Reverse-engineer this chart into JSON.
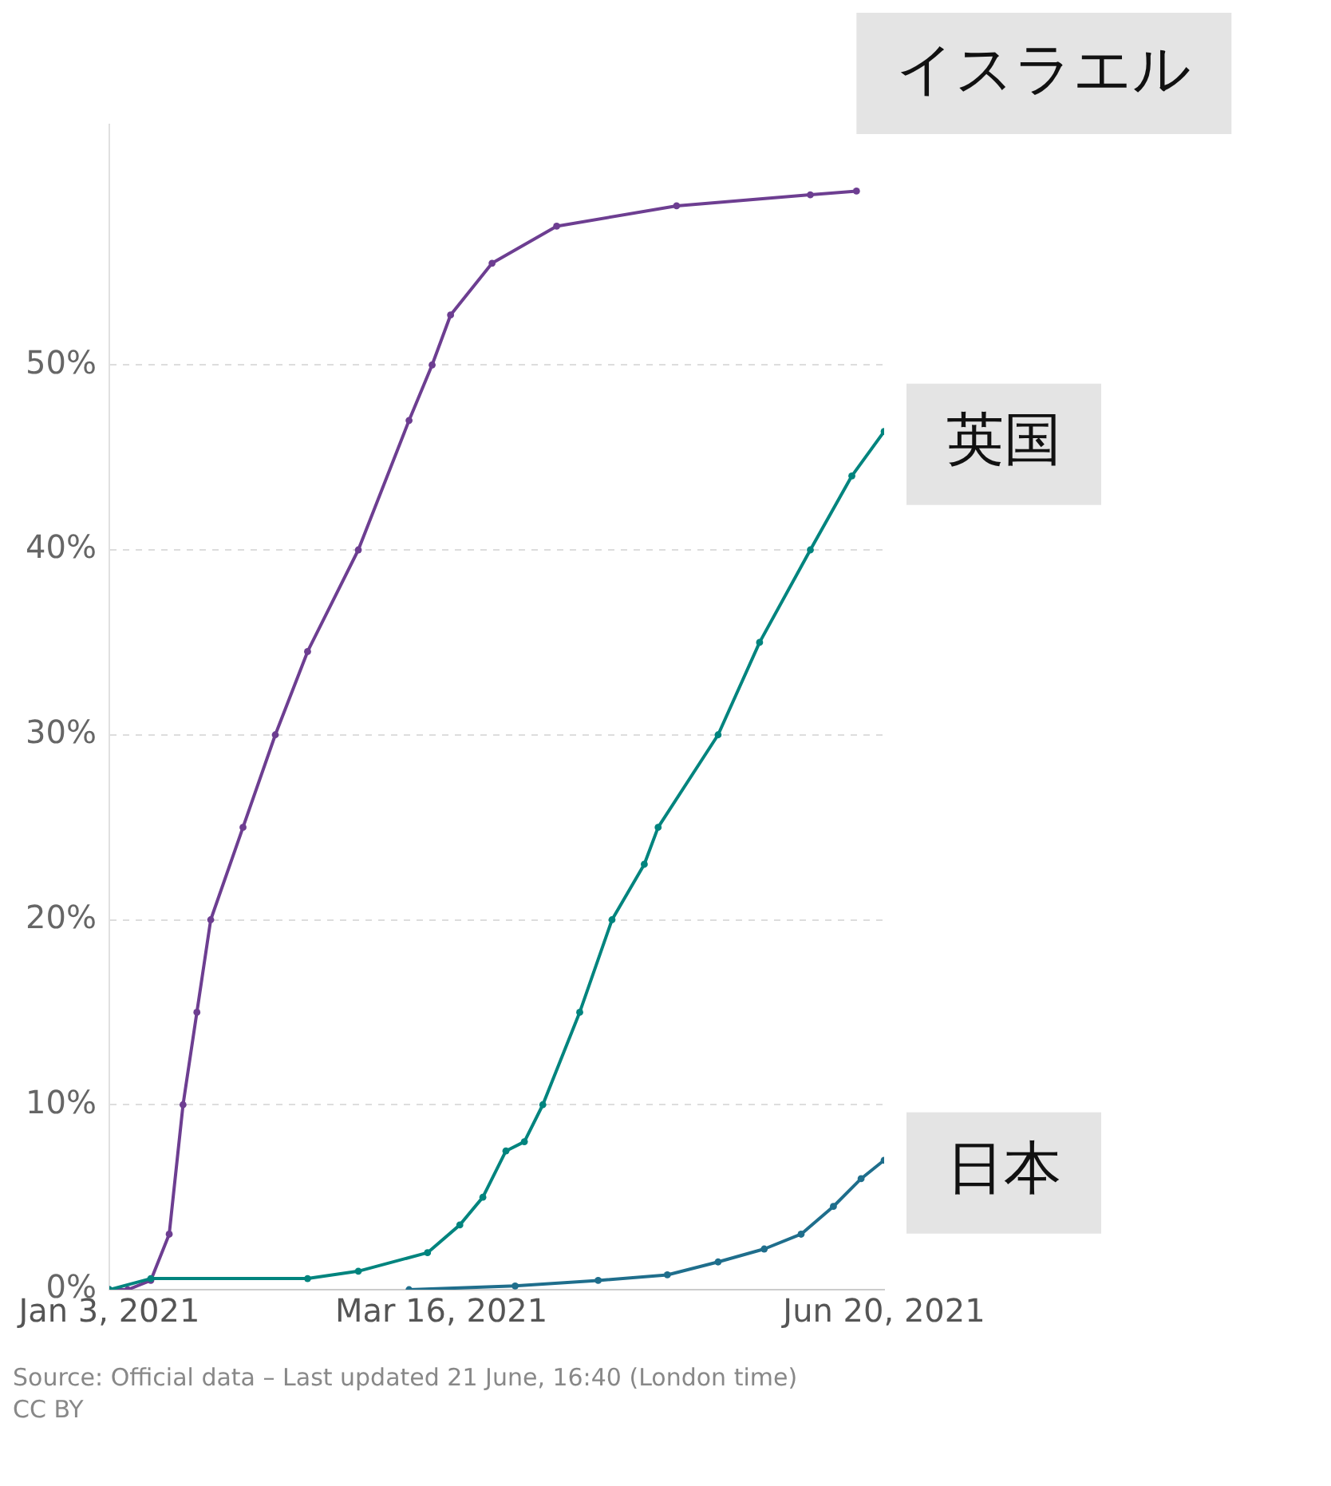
{
  "chart_data": {
    "type": "line",
    "marker": "circle",
    "grid": "y",
    "legend": false,
    "xlim": [
      "2021-01-03",
      "2021-06-20"
    ],
    "xticks": [
      {
        "value": "2021-01-03",
        "label": "Jan 3, 2021"
      },
      {
        "value": "2021-03-16",
        "label": "Mar 16, 2021"
      },
      {
        "value": "2021-06-20",
        "label": "Jun 20, 2021"
      }
    ],
    "ylim": [
      0,
      63
    ],
    "yticks": [
      {
        "value": 0,
        "label": "0%"
      },
      {
        "value": 10,
        "label": "10%"
      },
      {
        "value": 20,
        "label": "20%"
      },
      {
        "value": 30,
        "label": "30%"
      },
      {
        "value": 40,
        "label": "40%"
      },
      {
        "value": 50,
        "label": "50%"
      }
    ],
    "series": [
      {
        "name": "イスラエル",
        "color": "#6d3e91",
        "x": [
          "2021-01-03",
          "2021-01-07",
          "2021-01-12",
          "2021-01-16",
          "2021-01-19",
          "2021-01-22",
          "2021-01-25",
          "2021-02-01",
          "2021-02-08",
          "2021-02-15",
          "2021-02-26",
          "2021-03-09",
          "2021-03-14",
          "2021-03-18",
          "2021-03-27",
          "2021-04-10",
          "2021-05-06",
          "2021-06-04",
          "2021-06-14"
        ],
        "values": [
          0,
          0,
          0.5,
          3,
          10,
          15,
          20,
          25,
          30,
          34.5,
          40,
          47,
          50,
          52.7,
          55.5,
          57.5,
          58.6,
          59.2,
          59.4
        ]
      },
      {
        "name": "英国",
        "color": "#00847e",
        "x": [
          "2021-01-03",
          "2021-01-12",
          "2021-02-15",
          "2021-02-26",
          "2021-03-13",
          "2021-03-20",
          "2021-03-25",
          "2021-03-30",
          "2021-04-03",
          "2021-04-07",
          "2021-04-15",
          "2021-04-22",
          "2021-04-29",
          "2021-05-02",
          "2021-05-15",
          "2021-05-24",
          "2021-06-04",
          "2021-06-13",
          "2021-06-20"
        ],
        "values": [
          0,
          0.6,
          0.6,
          1,
          2,
          3.5,
          5,
          7.5,
          8,
          10,
          15,
          20,
          23,
          25,
          30,
          35,
          40,
          44,
          46.4
        ]
      },
      {
        "name": "日本",
        "color": "#1f6e8c",
        "x": [
          "2021-03-09",
          "2021-04-01",
          "2021-04-19",
          "2021-05-04",
          "2021-05-15",
          "2021-05-25",
          "2021-06-02",
          "2021-06-09",
          "2021-06-15",
          "2021-06-20"
        ],
        "values": [
          0,
          0.2,
          0.5,
          0.8,
          1.5,
          2.2,
          3,
          4.5,
          6,
          7
        ]
      }
    ],
    "annotations": [
      "Source: Official data – Last updated 21 June, 16:40 (London time)",
      "CC BY"
    ]
  }
}
